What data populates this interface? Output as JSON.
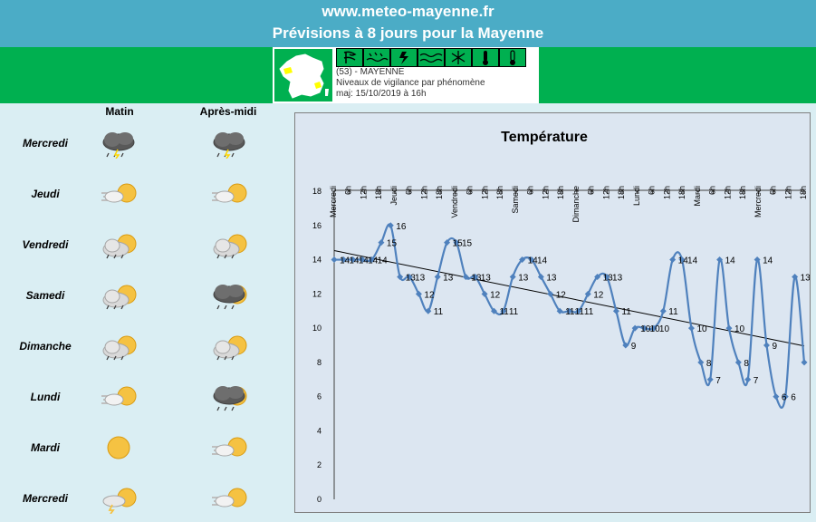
{
  "header": {
    "site": "www.meteo-mayenne.fr",
    "subtitle": "Prévisions à 8 jours pour la Mayenne"
  },
  "vigilance": {
    "department": "(53) - MAYENNE",
    "description": "Niveaux de vigilance par phénomène",
    "updated": "maj: 15/10/2019 à 16h",
    "icons": [
      "wind-icon",
      "rain-flood-icon",
      "storm-icon",
      "flood-icon",
      "snow-ice-icon",
      "heat-icon",
      "cold-icon"
    ],
    "level_color": "#00b050"
  },
  "forecast": {
    "col_morning": "Matin",
    "col_afternoon": "Après-midi",
    "days": [
      {
        "name": "Mercredi",
        "morning": "storm-rain",
        "afternoon": "storm-rain"
      },
      {
        "name": "Jeudi",
        "morning": "windy-sun",
        "afternoon": "windy-sun"
      },
      {
        "name": "Vendredi",
        "morning": "sun-cloud-rain",
        "afternoon": "sun-cloud-rain"
      },
      {
        "name": "Samedi",
        "morning": "sun-cloud-rain",
        "afternoon": "dark-cloud-rain"
      },
      {
        "name": "Dimanche",
        "morning": "sun-cloud-rain",
        "afternoon": "sun-cloud-rain"
      },
      {
        "name": "Lundi",
        "morning": "windy-sun",
        "afternoon": "dark-cloud-rain"
      },
      {
        "name": "Mardi",
        "morning": "sun",
        "afternoon": "windy-sun"
      },
      {
        "name": "Mercredi",
        "morning": "sun-cloud-thunder",
        "afternoon": "windy-sun"
      }
    ]
  },
  "chart_data": {
    "type": "line",
    "title": "Température",
    "x_labels": [
      "Mercredi",
      "6h",
      "12h",
      "18h",
      "Jeudi",
      "6h",
      "12h",
      "18h",
      "Vendredi",
      "6h",
      "12h",
      "18h",
      "Samedi",
      "6h",
      "12h",
      "18h",
      "Dimanche",
      "6h",
      "12h",
      "18h",
      "Lundi",
      "6h",
      "12h",
      "18h",
      "Mardi",
      "6h",
      "12h",
      "18h",
      "Mercredi",
      "6h",
      "12h",
      "18h"
    ],
    "values": [
      14,
      14,
      14,
      14,
      14,
      15,
      16,
      13,
      13,
      12,
      11,
      13,
      15,
      15,
      13,
      13,
      12,
      11,
      11,
      13,
      14,
      14,
      13,
      12,
      11,
      11,
      11,
      12,
      13,
      13,
      11,
      9,
      10,
      10,
      10,
      11,
      14,
      14,
      10,
      8,
      7,
      14,
      10,
      8,
      7,
      14,
      9,
      6,
      6,
      13,
      8
    ],
    "point_labels": [
      "14",
      "14",
      "14",
      "14",
      "14",
      "15",
      "16",
      "13",
      "13",
      "12",
      "11",
      "13",
      "15",
      "15",
      "13",
      "13",
      "12",
      "11",
      "11",
      "13",
      "14",
      "14",
      "13",
      "12",
      "11",
      "11",
      "11",
      "12",
      "13",
      "13",
      "11",
      "9",
      "10",
      "10",
      "10",
      "11",
      "14",
      "14",
      "10",
      "8",
      "7",
      "14",
      "10",
      "8",
      "7",
      "14",
      "9",
      "6",
      "6",
      "13",
      "8"
    ],
    "ylim": [
      0,
      18
    ],
    "y_ticks": [
      "0",
      "2",
      "4",
      "6",
      "8",
      "10",
      "12",
      "14",
      "16",
      "18"
    ],
    "trendline": true,
    "grid": false,
    "series_color": "#4f81bd"
  }
}
